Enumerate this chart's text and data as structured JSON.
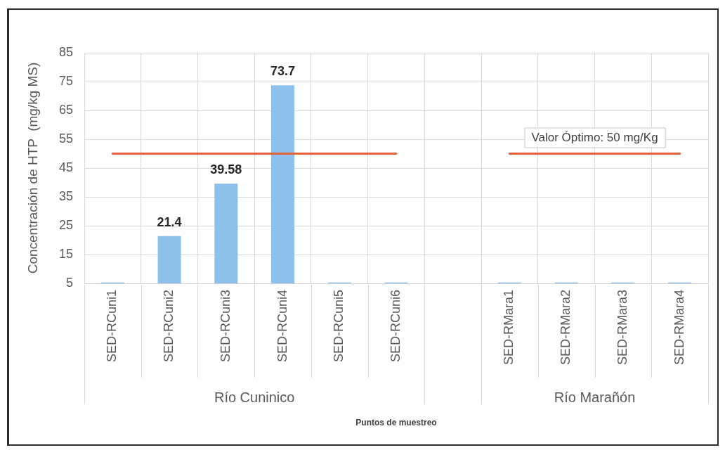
{
  "chart_data": {
    "type": "bar",
    "ylabel": "Concentración de HTP  (mg/kg MS)",
    "categories": [
      "SED-RCuni1",
      "SED-RCuni2",
      "SED-RCuni3",
      "SED-RCuni4",
      "SED-RCuni5",
      "SED-RCuni6",
      null,
      "SED-RMara1",
      "SED-RMara2",
      "SED-RMara3",
      "SED-RMara4"
    ],
    "series": [
      {
        "color": "#8dc0ea",
        "values": [
          5.3,
          21.4,
          39.58,
          73.7,
          5.3,
          5.3,
          null,
          5.3,
          5.3,
          5.3,
          5.3
        ],
        "value_labels": [
          null,
          "21.4",
          "39.58",
          "73.7",
          null,
          null,
          null,
          null,
          null,
          null,
          null
        ]
      },
      {
        "type": "line",
        "name": "Valor Óptimo: 50 mg/Kg",
        "color": "#e2603a",
        "values": [
          50,
          50,
          50,
          50,
          50,
          50,
          null,
          50,
          50,
          50,
          50
        ]
      }
    ],
    "annotations": [
      "Río Cuninico",
      "Río Marañón",
      "Puntos de muestreo"
    ],
    "ylim": [
      5,
      85
    ],
    "yticks": [
      5,
      15,
      25,
      35,
      45,
      55,
      65,
      75,
      85
    ],
    "grid": true,
    "marker": "none",
    "line_style": "solid"
  }
}
